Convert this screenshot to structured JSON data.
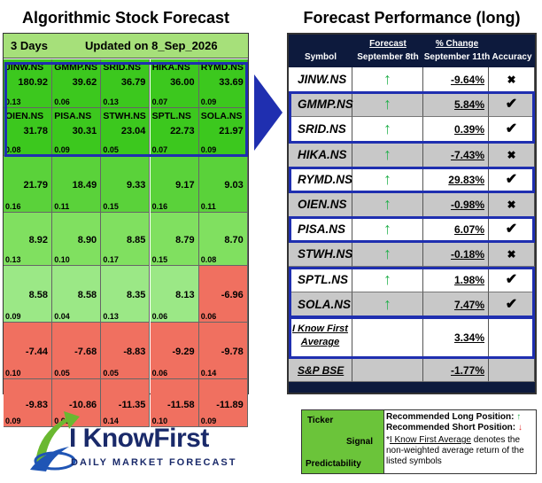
{
  "left_title": "Algorithmic Stock Forecast",
  "right_title": "Forecast Performance (long)",
  "left_header": {
    "days": "3 Days",
    "updated": "Updated on 8_Sep_2026"
  },
  "grid": [
    [
      {
        "sym": "JINW.NS",
        "sig": "180.92",
        "pred": "0.13",
        "color": "#3cc81e"
      },
      {
        "sym": "GMMP.NS",
        "sig": "39.62",
        "pred": "0.06",
        "color": "#3cc81e"
      },
      {
        "sym": "SRID.NS",
        "sig": "36.79",
        "pred": "0.13",
        "color": "#3cc81e"
      },
      {
        "sym": "HIKA.NS",
        "sig": "36.00",
        "pred": "0.07",
        "color": "#3cc81e"
      },
      {
        "sym": "RYMD.NS",
        "sig": "33.69",
        "pred": "0.09",
        "color": "#3cc81e"
      }
    ],
    [
      {
        "sym": "OIEN.NS",
        "sig": "31.78",
        "pred": "0.08",
        "color": "#3cc81e"
      },
      {
        "sym": "PISA.NS",
        "sig": "30.31",
        "pred": "0.09",
        "color": "#3cc81e"
      },
      {
        "sym": "STWH.NS",
        "sig": "23.04",
        "pred": "0.05",
        "color": "#3cc81e"
      },
      {
        "sym": "SPTL.NS",
        "sig": "22.73",
        "pred": "0.07",
        "color": "#3cc81e"
      },
      {
        "sym": "SOLA.NS",
        "sig": "21.97",
        "pred": "0.09",
        "color": "#3cc81e"
      }
    ],
    [
      {
        "sym": "",
        "sig": "21.79",
        "pred": "0.16",
        "color": "#5ad23a"
      },
      {
        "sym": "",
        "sig": "18.49",
        "pred": "0.11",
        "color": "#5ad23a"
      },
      {
        "sym": "",
        "sig": "9.33",
        "pred": "0.15",
        "color": "#5ad23a"
      },
      {
        "sym": "",
        "sig": "9.17",
        "pred": "0.16",
        "color": "#5ad23a"
      },
      {
        "sym": "",
        "sig": "9.03",
        "pred": "0.11",
        "color": "#5ad23a"
      }
    ],
    [
      {
        "sym": "",
        "sig": "8.92",
        "pred": "0.13",
        "color": "#80e060"
      },
      {
        "sym": "",
        "sig": "8.90",
        "pred": "0.10",
        "color": "#80e060"
      },
      {
        "sym": "",
        "sig": "8.85",
        "pred": "0.17",
        "color": "#80e060"
      },
      {
        "sym": "",
        "sig": "8.79",
        "pred": "0.15",
        "color": "#80e060"
      },
      {
        "sym": "",
        "sig": "8.70",
        "pred": "0.08",
        "color": "#80e060"
      }
    ],
    [
      {
        "sym": "",
        "sig": "8.58",
        "pred": "0.09",
        "color": "#9be886"
      },
      {
        "sym": "",
        "sig": "8.58",
        "pred": "0.04",
        "color": "#9be886"
      },
      {
        "sym": "",
        "sig": "8.35",
        "pred": "0.13",
        "color": "#9be886"
      },
      {
        "sym": "",
        "sig": "8.13",
        "pred": "0.06",
        "color": "#9be886"
      },
      {
        "sym": "",
        "sig": "-6.96",
        "pred": "0.06",
        "color": "#f07060"
      }
    ],
    [
      {
        "sym": "",
        "sig": "-7.44",
        "pred": "0.10",
        "color": "#f07060"
      },
      {
        "sym": "",
        "sig": "-7.68",
        "pred": "0.05",
        "color": "#f07060"
      },
      {
        "sym": "",
        "sig": "-8.83",
        "pred": "0.05",
        "color": "#f07060"
      },
      {
        "sym": "",
        "sig": "-9.29",
        "pred": "0.06",
        "color": "#f07060"
      },
      {
        "sym": "",
        "sig": "-9.78",
        "pred": "0.14",
        "color": "#f07060"
      }
    ],
    [
      {
        "sym": "",
        "sig": "-9.83",
        "pred": "0.09",
        "color": "#f07060"
      },
      {
        "sym": "",
        "sig": "-10.86",
        "pred": "0.08",
        "color": "#f07060"
      },
      {
        "sym": "",
        "sig": "-11.35",
        "pred": "0.14",
        "color": "#f07060"
      },
      {
        "sym": "",
        "sig": "-11.58",
        "pred": "0.10",
        "color": "#f07060"
      },
      {
        "sym": "",
        "sig": "-11.89",
        "pred": "0.09",
        "color": "#f07060"
      }
    ]
  ],
  "right_header": {
    "symbol": "Symbol",
    "forecast": "Forecast",
    "forecast_date": "September 8th",
    "change": "% Change",
    "change_date": "September 11th",
    "accuracy": "Accuracy"
  },
  "rows": [
    {
      "sym": "JINW.NS",
      "change": "-9.64%",
      "acc": "✖",
      "bg": "#ffffff"
    },
    {
      "sym": "GMMP.NS",
      "change": "5.84%",
      "acc": "✔",
      "bg": "#c8c8c8"
    },
    {
      "sym": "SRID.NS",
      "change": "0.39%",
      "acc": "✔",
      "bg": "#ffffff"
    },
    {
      "sym": "HIKA.NS",
      "change": "-7.43%",
      "acc": "✖",
      "bg": "#c8c8c8"
    },
    {
      "sym": "RYMD.NS",
      "change": "29.83%",
      "acc": "✔",
      "bg": "#ffffff"
    },
    {
      "sym": "OIEN.NS",
      "change": "-0.98%",
      "acc": "✖",
      "bg": "#c8c8c8"
    },
    {
      "sym": "PISA.NS",
      "change": "6.07%",
      "acc": "✔",
      "bg": "#ffffff"
    },
    {
      "sym": "STWH.NS",
      "change": "-0.18%",
      "acc": "✖",
      "bg": "#c8c8c8"
    },
    {
      "sym": "SPTL.NS",
      "change": "1.98%",
      "acc": "✔",
      "bg": "#ffffff"
    },
    {
      "sym": "SOLA.NS",
      "change": "7.47%",
      "acc": "✔",
      "bg": "#c8c8c8"
    }
  ],
  "average": {
    "label1": "I Know First",
    "label2": "Average",
    "value": "3.34%"
  },
  "benchmark": {
    "label": "S&P BSE",
    "value": "-1.77%"
  },
  "legend": {
    "ticker": "Ticker",
    "signal": "Signal",
    "predictability": "Predictability",
    "long": "Recommended Long Position:",
    "short": "Recommended Short Position:",
    "note_star": "*",
    "note_link": "I Know First Average",
    "note_rest": " denotes the non-weighted average return of the listed symbols"
  },
  "logo": {
    "brand": "I KnowFirst",
    "tagline": "DAILY MARKET FORECAST"
  },
  "colors": {
    "highlight": "#1f2fb0",
    "up_arrow": "#22b04a",
    "down_arrow": "#e03030"
  }
}
